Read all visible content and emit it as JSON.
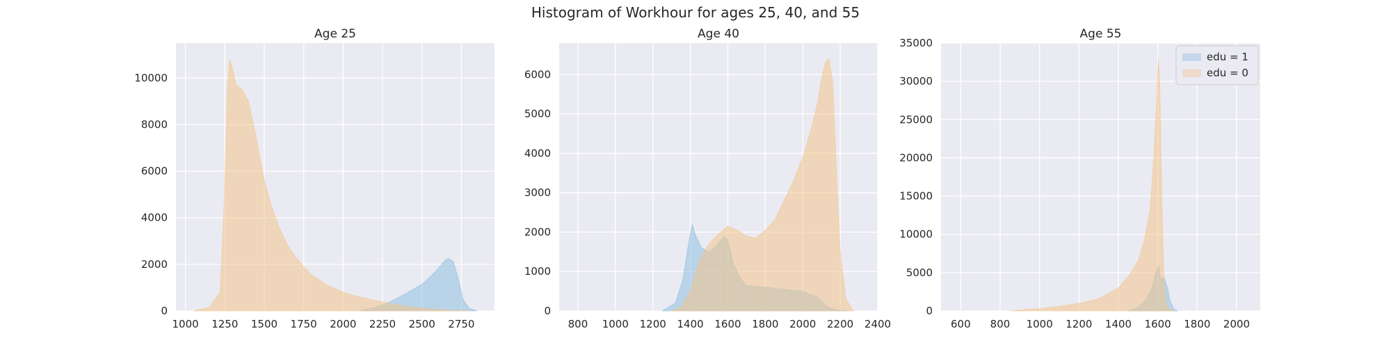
{
  "figure": {
    "title": "Histogram of Workhour for ages 25, 40, and 55",
    "colors": {
      "background": "#eaeaf2",
      "grid": "#ffffff",
      "edu1": "#8fbfe0",
      "edu0": "#f2c48d"
    }
  },
  "chart_data": [
    {
      "type": "histogram",
      "title": "Age 25",
      "xlim": [
        940,
        2960
      ],
      "ylim": [
        0,
        11500
      ],
      "xticks": [
        1000,
        1250,
        1500,
        1750,
        2000,
        2250,
        2500,
        2750
      ],
      "yticks": [
        0,
        2000,
        4000,
        6000,
        8000,
        10000
      ],
      "grid": true,
      "series": [
        {
          "name": "edu = 1",
          "color": "#8fbfe0",
          "x": [
            2100,
            2200,
            2300,
            2400,
            2500,
            2550,
            2600,
            2650,
            2670,
            2700,
            2730,
            2760,
            2800,
            2850
          ],
          "y": [
            0,
            150,
            400,
            750,
            1150,
            1450,
            1800,
            2200,
            2250,
            2100,
            1400,
            500,
            100,
            0
          ]
        },
        {
          "name": "edu = 0",
          "color": "#f2c48d",
          "x": [
            1050,
            1150,
            1220,
            1245,
            1265,
            1280,
            1300,
            1320,
            1360,
            1400,
            1450,
            1500,
            1550,
            1600,
            1650,
            1700,
            1750,
            1800,
            1900,
            2000,
            2100,
            2200,
            2300,
            2400,
            2500,
            2600,
            2700,
            2800
          ],
          "y": [
            0,
            150,
            800,
            4500,
            9500,
            10800,
            10400,
            9700,
            9500,
            9000,
            7400,
            5600,
            4400,
            3500,
            2800,
            2300,
            1900,
            1550,
            1100,
            800,
            600,
            450,
            320,
            200,
            120,
            60,
            20,
            0
          ]
        }
      ]
    },
    {
      "type": "histogram",
      "title": "Age 40",
      "xlim": [
        700,
        2400
      ],
      "ylim": [
        0,
        6800
      ],
      "xticks": [
        800,
        1000,
        1200,
        1400,
        1600,
        1800,
        2000,
        2200,
        2400
      ],
      "yticks": [
        0,
        1000,
        2000,
        3000,
        4000,
        5000,
        6000
      ],
      "grid": true,
      "series": [
        {
          "name": "edu = 1",
          "color": "#8fbfe0",
          "x": [
            1250,
            1320,
            1360,
            1390,
            1410,
            1430,
            1460,
            1500,
            1540,
            1580,
            1600,
            1630,
            1670,
            1700,
            1800,
            1900,
            2000,
            2080,
            2120,
            2160,
            2200,
            2250
          ],
          "y": [
            0,
            200,
            800,
            1700,
            2200,
            1900,
            1600,
            1500,
            1650,
            1900,
            1800,
            1200,
            800,
            650,
            600,
            550,
            500,
            350,
            150,
            50,
            10,
            0
          ]
        },
        {
          "name": "edu = 0",
          "color": "#f2c48d",
          "x": [
            1300,
            1350,
            1400,
            1430,
            1460,
            1500,
            1550,
            1600,
            1650,
            1700,
            1750,
            1800,
            1850,
            1900,
            1950,
            2000,
            2050,
            2080,
            2100,
            2120,
            2140,
            2160,
            2180,
            2200,
            2230,
            2270
          ],
          "y": [
            0,
            100,
            500,
            1000,
            1400,
            1700,
            1950,
            2150,
            2050,
            1900,
            1850,
            2050,
            2300,
            2800,
            3300,
            3900,
            4700,
            5300,
            5900,
            6300,
            6400,
            5800,
            3500,
            1500,
            300,
            0
          ]
        }
      ]
    },
    {
      "type": "histogram",
      "title": "Age 55",
      "xlim": [
        500,
        2120
      ],
      "ylim": [
        0,
        35000
      ],
      "xticks": [
        600,
        800,
        1000,
        1200,
        1400,
        1600,
        1800,
        2000
      ],
      "yticks": [
        0,
        5000,
        10000,
        15000,
        20000,
        25000,
        30000,
        35000
      ],
      "grid": true,
      "legend": {
        "position": "upper right"
      },
      "series": [
        {
          "name": "edu = 1",
          "color": "#8fbfe0",
          "x": [
            1450,
            1500,
            1540,
            1570,
            1590,
            1605,
            1615,
            1630,
            1650,
            1660,
            1680,
            1700
          ],
          "y": [
            0,
            500,
            1500,
            3000,
            5000,
            6000,
            4000,
            4500,
            3000,
            1500,
            300,
            0
          ]
        },
        {
          "name": "edu = 0",
          "color": "#f2c48d",
          "x": [
            850,
            1000,
            1100,
            1200,
            1300,
            1400,
            1450,
            1500,
            1530,
            1560,
            1580,
            1595,
            1603,
            1610,
            1620,
            1630,
            1640,
            1650,
            1680
          ],
          "y": [
            0,
            300,
            600,
            1000,
            1600,
            3000,
            4500,
            6500,
            9000,
            13000,
            20000,
            28000,
            33000,
            30000,
            15000,
            5000,
            1500,
            400,
            0
          ]
        }
      ]
    }
  ]
}
